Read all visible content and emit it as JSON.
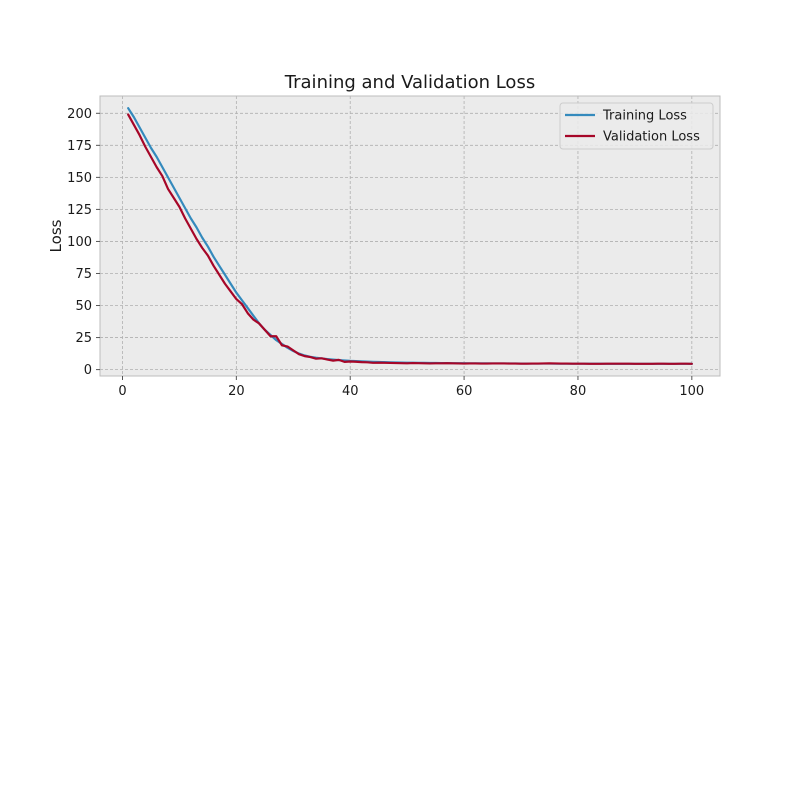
{
  "chart_data": {
    "type": "line",
    "title": "Training and Validation Loss",
    "xlabel": "",
    "ylabel": "Loss",
    "xlim": [
      -3.95,
      104.95
    ],
    "ylim": [
      -5.0,
      213.5
    ],
    "xticks": [
      0,
      20,
      40,
      60,
      80,
      100
    ],
    "yticks": [
      0,
      25,
      50,
      75,
      100,
      125,
      150,
      175,
      200
    ],
    "grid": true,
    "legend_position": "top-right",
    "background_color": "#ebebeb",
    "grid_color": "#b0b0b0",
    "series": [
      {
        "name": "Training Loss",
        "color": "#348abd",
        "x": [
          1,
          2,
          3,
          4,
          5,
          6,
          7,
          8,
          9,
          10,
          11,
          12,
          13,
          14,
          15,
          16,
          17,
          18,
          19,
          20,
          21,
          22,
          23,
          24,
          25,
          26,
          27,
          28,
          29,
          30,
          31,
          32,
          33,
          34,
          35,
          36,
          37,
          38,
          39,
          40,
          41,
          42,
          43,
          44,
          45,
          46,
          47,
          48,
          49,
          50,
          51,
          52,
          53,
          54,
          55,
          56,
          57,
          58,
          59,
          60,
          61,
          62,
          63,
          64,
          65,
          66,
          67,
          68,
          69,
          70,
          71,
          72,
          73,
          74,
          75,
          76,
          77,
          78,
          79,
          80,
          81,
          82,
          83,
          84,
          85,
          86,
          87,
          88,
          89,
          90,
          91,
          92,
          93,
          94,
          95,
          96,
          97,
          98,
          99,
          100
        ],
        "y": [
          204,
          197,
          189,
          181,
          173,
          166,
          158,
          150,
          142,
          134,
          126,
          118,
          111,
          103,
          96,
          88,
          81,
          74,
          67,
          60,
          54,
          48,
          42,
          36,
          31,
          27,
          23,
          20,
          17,
          14.5,
          12.5,
          11,
          10,
          9.3,
          8.7,
          8.2,
          7.8,
          7.4,
          7.1,
          6.8,
          6.6,
          6.4,
          6.2,
          6.0,
          5.9,
          5.8,
          5.7,
          5.6,
          5.5,
          5.4,
          5.4,
          5.3,
          5.3,
          5.2,
          5.2,
          5.1,
          5.1,
          5.0,
          5.0,
          5.0,
          4.9,
          4.9,
          4.9,
          4.9,
          4.8,
          4.8,
          4.8,
          4.8,
          4.8,
          4.7,
          4.7,
          4.7,
          4.7,
          4.7,
          4.7,
          4.6,
          4.6,
          4.6,
          4.6,
          4.6,
          4.6,
          4.6,
          4.6,
          4.6,
          4.5,
          4.5,
          4.5,
          4.5,
          4.5,
          4.5,
          4.5,
          4.5,
          4.5,
          4.5,
          4.5,
          4.5,
          4.5,
          4.5,
          4.5,
          4.5
        ]
      },
      {
        "name": "Validation Loss",
        "color": "#a60628",
        "x": [
          1,
          2,
          3,
          4,
          5,
          6,
          7,
          8,
          9,
          10,
          11,
          12,
          13,
          14,
          15,
          16,
          17,
          18,
          19,
          20,
          21,
          22,
          23,
          24,
          25,
          26,
          27,
          28,
          29,
          30,
          31,
          32,
          33,
          34,
          35,
          36,
          37,
          38,
          39,
          40,
          41,
          42,
          43,
          44,
          45,
          46,
          47,
          48,
          49,
          50,
          51,
          52,
          53,
          54,
          55,
          56,
          57,
          58,
          59,
          60,
          61,
          62,
          63,
          64,
          65,
          66,
          67,
          68,
          69,
          70,
          71,
          72,
          73,
          74,
          75,
          76,
          77,
          78,
          79,
          80,
          81,
          82,
          83,
          84,
          85,
          86,
          87,
          88,
          89,
          90,
          91,
          92,
          93,
          94,
          95,
          96,
          97,
          98,
          99,
          100
        ],
        "y": [
          199,
          191,
          183,
          174,
          166,
          158,
          151,
          141,
          134,
          127,
          118,
          110,
          102,
          95,
          89,
          81,
          74,
          67,
          61,
          55,
          51,
          44,
          39,
          36,
          31,
          26,
          26,
          19,
          18,
          15,
          12,
          10.5,
          9.8,
          8.5,
          8.8,
          7.8,
          7.0,
          7.6,
          6.0,
          6.3,
          6.1,
          5.8,
          5.7,
          5.3,
          5.4,
          5.3,
          5.2,
          5.1,
          5.0,
          4.9,
          5.1,
          5.0,
          4.9,
          4.8,
          4.9,
          4.9,
          5.0,
          4.9,
          4.8,
          4.7,
          4.8,
          4.8,
          4.7,
          4.7,
          4.8,
          4.8,
          4.8,
          4.7,
          4.7,
          4.6,
          4.6,
          4.7,
          4.7,
          4.8,
          4.9,
          4.8,
          4.7,
          4.7,
          4.6,
          4.6,
          4.6,
          4.5,
          4.5,
          4.5,
          4.6,
          4.6,
          4.6,
          4.6,
          4.6,
          4.5,
          4.5,
          4.5,
          4.5,
          4.6,
          4.6,
          4.5,
          4.5,
          4.6,
          4.6,
          4.5
        ]
      }
    ]
  }
}
